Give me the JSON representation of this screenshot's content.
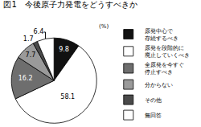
{
  "chart_data": {
    "type": "pie",
    "title": "図1　今後原子力発電をどうすべきか",
    "annotations": [
      "(%)"
    ],
    "categories": [
      "原発中心で\n存続するべき",
      "原発を段階的に\n廃止していくべき",
      "全原発を今すぐ\n停止すべき",
      "分からない",
      "その他",
      "無回答"
    ],
    "values": [
      9.8,
      58.1,
      16.2,
      7.7,
      1.7,
      6.4
    ],
    "colors": [
      "#111111",
      "#ffffff",
      "#6e6e6e",
      "#9a9a9a",
      "#4a4a4a",
      "#ffffff"
    ],
    "data_labels": true,
    "legend": "right"
  }
}
